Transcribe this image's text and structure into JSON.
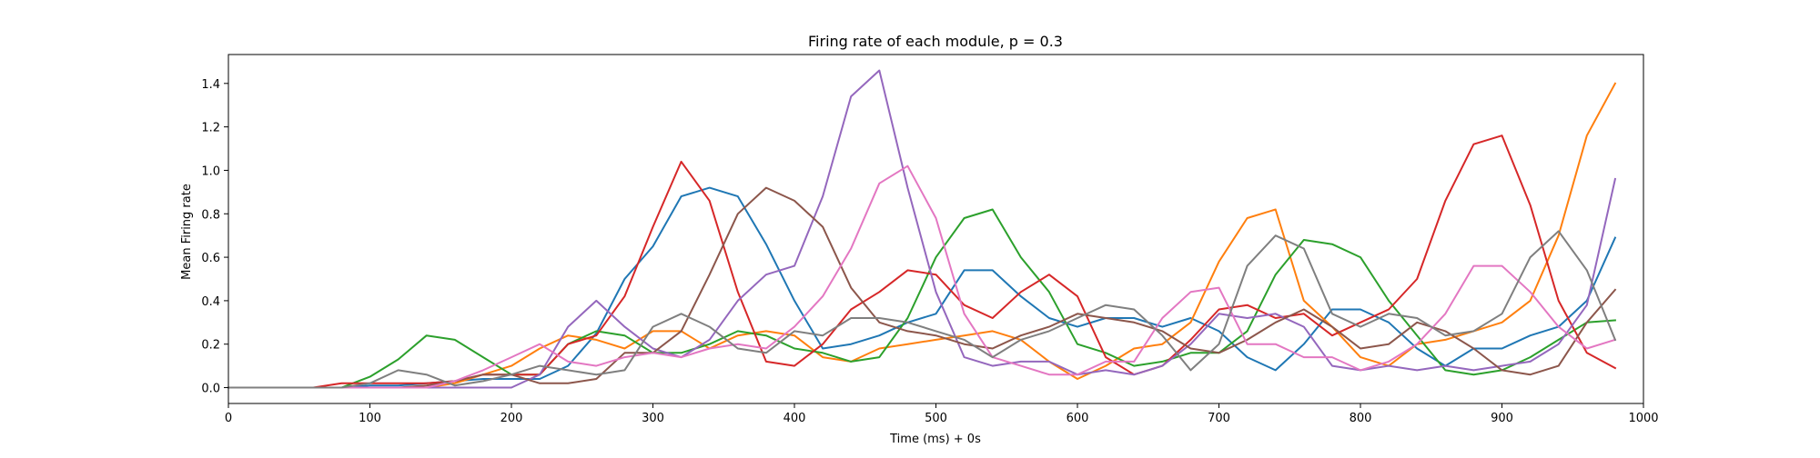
{
  "chart_data": {
    "type": "line",
    "title": "Firing rate of each module, p = 0.3",
    "xlabel": "Time (ms) + 0s",
    "ylabel": "Mean Firing rate",
    "xlim": [
      0,
      1000
    ],
    "ylim": [
      -0.073,
      1.533
    ],
    "grid": false,
    "x_ticks": [
      0,
      100,
      200,
      300,
      400,
      500,
      600,
      700,
      800,
      900,
      1000
    ],
    "x_tick_labels": [
      "0",
      "100",
      "200",
      "300",
      "400",
      "500",
      "600",
      "700",
      "800",
      "900",
      "1000"
    ],
    "y_ticks": [
      0.0,
      0.2,
      0.4,
      0.6,
      0.8,
      1.0,
      1.2,
      1.4
    ],
    "y_tick_labels": [
      "0.0",
      "0.2",
      "0.4",
      "0.6",
      "0.8",
      "1.0",
      "1.2",
      "1.4"
    ],
    "x": [
      0,
      20,
      40,
      60,
      80,
      100,
      120,
      140,
      160,
      180,
      200,
      220,
      240,
      260,
      280,
      300,
      320,
      340,
      360,
      380,
      400,
      420,
      440,
      460,
      480,
      500,
      520,
      540,
      560,
      580,
      600,
      620,
      640,
      660,
      680,
      700,
      720,
      740,
      760,
      780,
      800,
      820,
      840,
      860,
      880,
      900,
      920,
      940,
      960,
      980
    ],
    "series": [
      {
        "color": "#1f77b4",
        "values": [
          0,
          0,
          0,
          0,
          0,
          0.01,
          0.01,
          0.02,
          0.03,
          0.04,
          0.04,
          0.04,
          0.1,
          0.25,
          0.5,
          0.65,
          0.88,
          0.92,
          0.88,
          0.66,
          0.4,
          0.18,
          0.2,
          0.24,
          0.3,
          0.34,
          0.54,
          0.54,
          0.42,
          0.32,
          0.28,
          0.32,
          0.32,
          0.28,
          0.32,
          0.26,
          0.14,
          0.08,
          0.2,
          0.36,
          0.36,
          0.3,
          0.18,
          0.1,
          0.18,
          0.18,
          0.24,
          0.28,
          0.4,
          0.69
        ]
      },
      {
        "color": "#ff7f0e",
        "values": [
          0,
          0,
          0,
          0,
          0,
          0,
          0,
          0,
          0.02,
          0.06,
          0.1,
          0.18,
          0.24,
          0.22,
          0.18,
          0.26,
          0.26,
          0.18,
          0.24,
          0.26,
          0.24,
          0.14,
          0.12,
          0.18,
          0.2,
          0.22,
          0.24,
          0.26,
          0.22,
          0.12,
          0.04,
          0.1,
          0.18,
          0.2,
          0.3,
          0.58,
          0.78,
          0.82,
          0.4,
          0.28,
          0.14,
          0.1,
          0.2,
          0.22,
          0.26,
          0.3,
          0.4,
          0.7,
          1.16,
          1.4
        ]
      },
      {
        "color": "#2ca02c",
        "values": [
          0,
          0,
          0,
          0,
          0,
          0.05,
          0.13,
          0.24,
          0.22,
          0.14,
          0.06,
          0.06,
          0.2,
          0.26,
          0.24,
          0.16,
          0.16,
          0.2,
          0.26,
          0.24,
          0.18,
          0.16,
          0.12,
          0.14,
          0.32,
          0.6,
          0.78,
          0.82,
          0.6,
          0.44,
          0.2,
          0.16,
          0.1,
          0.12,
          0.16,
          0.16,
          0.26,
          0.52,
          0.68,
          0.66,
          0.6,
          0.4,
          0.24,
          0.08,
          0.06,
          0.08,
          0.14,
          0.22,
          0.3,
          0.31
        ]
      },
      {
        "color": "#d62728",
        "values": [
          0,
          0,
          0,
          0,
          0.02,
          0.02,
          0.02,
          0.02,
          0.03,
          0.06,
          0.06,
          0.06,
          0.2,
          0.24,
          0.42,
          0.74,
          1.04,
          0.86,
          0.44,
          0.12,
          0.1,
          0.2,
          0.36,
          0.44,
          0.54,
          0.52,
          0.38,
          0.32,
          0.44,
          0.52,
          0.42,
          0.14,
          0.06,
          0.1,
          0.22,
          0.36,
          0.38,
          0.32,
          0.34,
          0.24,
          0.3,
          0.36,
          0.5,
          0.86,
          1.12,
          1.16,
          0.84,
          0.4,
          0.16,
          0.09
        ]
      },
      {
        "color": "#9467bd",
        "values": [
          0,
          0,
          0,
          0,
          0,
          0,
          0,
          0,
          0,
          0,
          0,
          0.06,
          0.28,
          0.4,
          0.28,
          0.18,
          0.14,
          0.22,
          0.4,
          0.52,
          0.56,
          0.88,
          1.34,
          1.46,
          0.92,
          0.44,
          0.14,
          0.1,
          0.12,
          0.12,
          0.06,
          0.08,
          0.06,
          0.1,
          0.2,
          0.34,
          0.32,
          0.34,
          0.28,
          0.1,
          0.08,
          0.1,
          0.08,
          0.1,
          0.08,
          0.1,
          0.12,
          0.2,
          0.38,
          0.96
        ]
      },
      {
        "color": "#8c564b",
        "values": [
          0,
          0,
          0,
          0,
          0,
          0,
          0,
          0.01,
          0.03,
          0.06,
          0.06,
          0.02,
          0.02,
          0.04,
          0.16,
          0.16,
          0.26,
          0.52,
          0.8,
          0.92,
          0.86,
          0.74,
          0.46,
          0.3,
          0.26,
          0.24,
          0.2,
          0.18,
          0.24,
          0.28,
          0.34,
          0.32,
          0.3,
          0.26,
          0.18,
          0.16,
          0.22,
          0.3,
          0.36,
          0.28,
          0.18,
          0.2,
          0.3,
          0.26,
          0.18,
          0.08,
          0.06,
          0.1,
          0.3,
          0.45
        ]
      },
      {
        "color": "#e377c2",
        "values": [
          0,
          0,
          0,
          0,
          0,
          0,
          0,
          0,
          0.03,
          0.08,
          0.14,
          0.2,
          0.12,
          0.1,
          0.14,
          0.16,
          0.14,
          0.18,
          0.2,
          0.18,
          0.28,
          0.42,
          0.64,
          0.94,
          1.02,
          0.78,
          0.34,
          0.14,
          0.1,
          0.06,
          0.06,
          0.12,
          0.12,
          0.32,
          0.44,
          0.46,
          0.2,
          0.2,
          0.14,
          0.14,
          0.08,
          0.12,
          0.2,
          0.34,
          0.56,
          0.56,
          0.44,
          0.28,
          0.18,
          0.22
        ]
      },
      {
        "color": "#7f7f7f",
        "values": [
          0,
          0,
          0,
          0,
          0,
          0.02,
          0.08,
          0.06,
          0.01,
          0.03,
          0.06,
          0.1,
          0.08,
          0.06,
          0.08,
          0.28,
          0.34,
          0.28,
          0.18,
          0.16,
          0.26,
          0.24,
          0.32,
          0.32,
          0.3,
          0.26,
          0.22,
          0.14,
          0.22,
          0.26,
          0.32,
          0.38,
          0.36,
          0.24,
          0.08,
          0.2,
          0.56,
          0.7,
          0.64,
          0.34,
          0.28,
          0.34,
          0.32,
          0.24,
          0.26,
          0.34,
          0.6,
          0.72,
          0.54,
          0.22
        ]
      }
    ]
  }
}
